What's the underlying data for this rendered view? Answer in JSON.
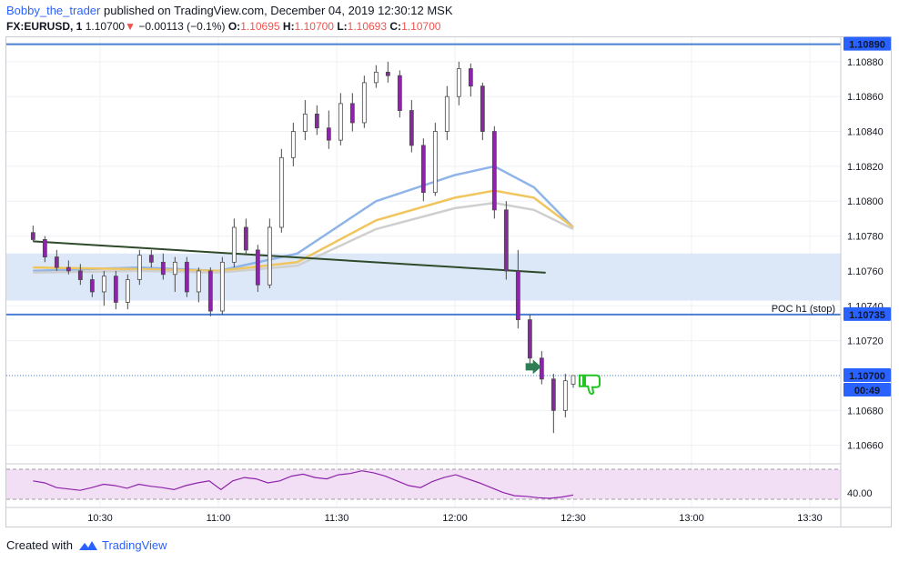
{
  "header": {
    "author": "Bobby_the_trader",
    "published": "published on TradingView.com, December 04, 2019 12:30:12 MSK",
    "symbol": "FX:EURUSD, 1",
    "last": "1.10700",
    "change_arrow": "▼",
    "change": "−0.00113 (−0.1%)",
    "o_label": "O:",
    "o_value": "1.10695",
    "h_label": "H:",
    "h_value": "1.10700",
    "l_label": "L:",
    "l_value": "1.10693",
    "c_label": "C:",
    "c_value": "1.10700"
  },
  "footer": {
    "created_with": "Created with",
    "brand": "TradingView"
  },
  "colors": {
    "accent": "#2962ff",
    "down": "#ef5350",
    "candle_body": "#8e24aa",
    "level_line": "#4a7fd4",
    "zone": "#dce8f8",
    "ema_blue": "#8fb4e8",
    "ema_gold": "#f1c55e",
    "ema_gray": "#cfcfcf",
    "trendline": "#2e4a2a",
    "rsi_line": "#8e24aa",
    "rsi_band": "#f2def5"
  },
  "chart_data": {
    "type": "candlestick",
    "symbol": "FX:EURUSD",
    "interval": "1",
    "y_ticks": [
      "1.10880",
      "1.10860",
      "1.10840",
      "1.10820",
      "1.10800",
      "1.10780",
      "1.10760",
      "1.10740",
      "1.10720",
      "1.10700",
      "1.10680",
      "1.10660"
    ],
    "x_ticks": [
      "10:30",
      "11:00",
      "11:30",
      "12:00",
      "12:30",
      "13:00",
      "13:30"
    ],
    "ylim": [
      1.10652,
      1.10894
    ],
    "time_range_minutes": [
      10.083,
      13.6
    ],
    "levels": [
      {
        "price": 1.1089,
        "label": "1.10890"
      },
      {
        "price": 1.10735,
        "label": "1.10735",
        "annotation": "POC h1 (stop)"
      }
    ],
    "current_price": {
      "price": 1.107,
      "label": "1.10700",
      "countdown": "00:49"
    },
    "zone": {
      "from": 1.10743,
      "to": 1.1077
    },
    "trendline": {
      "from": {
        "time": "10:13",
        "price": 1.10777
      },
      "to": {
        "time": "12:23",
        "price": 1.10759
      }
    },
    "signal_arrow": {
      "time": "12:20",
      "price": 1.10705,
      "direction": "right"
    },
    "thumbs_down": {
      "time": "12:33",
      "price": 1.10697
    },
    "moving_averages": [
      {
        "color": "ema_blue",
        "points": [
          [
            "10:13",
            1.1076
          ],
          [
            "10:40",
            1.10762
          ],
          [
            "11:00",
            1.1076
          ],
          [
            "11:20",
            1.1077
          ],
          [
            "11:40",
            1.108
          ],
          [
            "12:00",
            1.10815
          ],
          [
            "12:10",
            1.1082
          ],
          [
            "12:20",
            1.10808
          ],
          [
            "12:30",
            1.10785
          ]
        ]
      },
      {
        "color": "ema_gold",
        "points": [
          [
            "10:13",
            1.10762
          ],
          [
            "10:40",
            1.10761
          ],
          [
            "11:00",
            1.1076
          ],
          [
            "11:20",
            1.10765
          ],
          [
            "11:40",
            1.10789
          ],
          [
            "12:00",
            1.10802
          ],
          [
            "12:10",
            1.10806
          ],
          [
            "12:20",
            1.10802
          ],
          [
            "12:30",
            1.10785
          ]
        ]
      },
      {
        "color": "ema_gray",
        "points": [
          [
            "10:13",
            1.10759
          ],
          [
            "10:40",
            1.1076
          ],
          [
            "11:00",
            1.10759
          ],
          [
            "11:20",
            1.10763
          ],
          [
            "11:40",
            1.10784
          ],
          [
            "12:00",
            1.10796
          ],
          [
            "12:10",
            1.10799
          ],
          [
            "12:20",
            1.10795
          ],
          [
            "12:30",
            1.10784
          ]
        ]
      }
    ],
    "candles": [
      {
        "t": "10:13",
        "o": 1.10782,
        "h": 1.10786,
        "l": 1.10777,
        "c": 1.10778
      },
      {
        "t": "10:16",
        "o": 1.10778,
        "h": 1.1078,
        "l": 1.10765,
        "c": 1.10768
      },
      {
        "t": "10:19",
        "o": 1.10768,
        "h": 1.10772,
        "l": 1.1076,
        "c": 1.10762
      },
      {
        "t": "10:22",
        "o": 1.10762,
        "h": 1.10766,
        "l": 1.10758,
        "c": 1.1076
      },
      {
        "t": "10:25",
        "o": 1.1076,
        "h": 1.10764,
        "l": 1.10752,
        "c": 1.10755
      },
      {
        "t": "10:28",
        "o": 1.10755,
        "h": 1.10758,
        "l": 1.10745,
        "c": 1.10748
      },
      {
        "t": "10:31",
        "o": 1.10748,
        "h": 1.1076,
        "l": 1.1074,
        "c": 1.10757
      },
      {
        "t": "10:34",
        "o": 1.10757,
        "h": 1.1076,
        "l": 1.10738,
        "c": 1.10742
      },
      {
        "t": "10:37",
        "o": 1.10742,
        "h": 1.10758,
        "l": 1.10738,
        "c": 1.10755
      },
      {
        "t": "10:40",
        "o": 1.10755,
        "h": 1.10772,
        "l": 1.10752,
        "c": 1.10769
      },
      {
        "t": "10:43",
        "o": 1.10769,
        "h": 1.10772,
        "l": 1.10762,
        "c": 1.10765
      },
      {
        "t": "10:46",
        "o": 1.10765,
        "h": 1.1077,
        "l": 1.10755,
        "c": 1.10758
      },
      {
        "t": "10:49",
        "o": 1.10758,
        "h": 1.10768,
        "l": 1.10748,
        "c": 1.10765
      },
      {
        "t": "10:52",
        "o": 1.10765,
        "h": 1.10768,
        "l": 1.10745,
        "c": 1.10748
      },
      {
        "t": "10:55",
        "o": 1.10748,
        "h": 1.10762,
        "l": 1.10742,
        "c": 1.1076
      },
      {
        "t": "10:58",
        "o": 1.1076,
        "h": 1.10762,
        "l": 1.10734,
        "c": 1.10737
      },
      {
        "t": "11:01",
        "o": 1.10737,
        "h": 1.10768,
        "l": 1.10735,
        "c": 1.10765
      },
      {
        "t": "11:04",
        "o": 1.10765,
        "h": 1.1079,
        "l": 1.10762,
        "c": 1.10785
      },
      {
        "t": "11:07",
        "o": 1.10785,
        "h": 1.1079,
        "l": 1.1077,
        "c": 1.10772
      },
      {
        "t": "11:10",
        "o": 1.10772,
        "h": 1.10775,
        "l": 1.10748,
        "c": 1.10752
      },
      {
        "t": "11:13",
        "o": 1.10752,
        "h": 1.1079,
        "l": 1.1075,
        "c": 1.10785
      },
      {
        "t": "11:16",
        "o": 1.10785,
        "h": 1.1083,
        "l": 1.10782,
        "c": 1.10825
      },
      {
        "t": "11:19",
        "o": 1.10825,
        "h": 1.10845,
        "l": 1.1082,
        "c": 1.1084
      },
      {
        "t": "11:22",
        "o": 1.1084,
        "h": 1.10858,
        "l": 1.10835,
        "c": 1.1085
      },
      {
        "t": "11:25",
        "o": 1.1085,
        "h": 1.10855,
        "l": 1.10838,
        "c": 1.10842
      },
      {
        "t": "11:28",
        "o": 1.10842,
        "h": 1.10852,
        "l": 1.1083,
        "c": 1.10835
      },
      {
        "t": "11:31",
        "o": 1.10835,
        "h": 1.10862,
        "l": 1.10832,
        "c": 1.10856
      },
      {
        "t": "11:34",
        "o": 1.10856,
        "h": 1.10862,
        "l": 1.1084,
        "c": 1.10845
      },
      {
        "t": "11:37",
        "o": 1.10845,
        "h": 1.10872,
        "l": 1.10842,
        "c": 1.10868
      },
      {
        "t": "11:40",
        "o": 1.10868,
        "h": 1.10878,
        "l": 1.10865,
        "c": 1.10874
      },
      {
        "t": "11:43",
        "o": 1.10874,
        "h": 1.1088,
        "l": 1.10868,
        "c": 1.10872
      },
      {
        "t": "11:46",
        "o": 1.10872,
        "h": 1.10875,
        "l": 1.10848,
        "c": 1.10852
      },
      {
        "t": "11:49",
        "o": 1.10852,
        "h": 1.10858,
        "l": 1.10828,
        "c": 1.10832
      },
      {
        "t": "11:52",
        "o": 1.10832,
        "h": 1.10836,
        "l": 1.108,
        "c": 1.10805
      },
      {
        "t": "11:55",
        "o": 1.10805,
        "h": 1.10845,
        "l": 1.10803,
        "c": 1.1084
      },
      {
        "t": "11:58",
        "o": 1.1084,
        "h": 1.10866,
        "l": 1.10835,
        "c": 1.1086
      },
      {
        "t": "12:01",
        "o": 1.1086,
        "h": 1.1088,
        "l": 1.10855,
        "c": 1.10876
      },
      {
        "t": "12:04",
        "o": 1.10876,
        "h": 1.10879,
        "l": 1.1086,
        "c": 1.10866
      },
      {
        "t": "12:07",
        "o": 1.10866,
        "h": 1.10868,
        "l": 1.10835,
        "c": 1.1084
      },
      {
        "t": "12:10",
        "o": 1.1084,
        "h": 1.10843,
        "l": 1.1079,
        "c": 1.10795
      },
      {
        "t": "12:13",
        "o": 1.10795,
        "h": 1.108,
        "l": 1.10755,
        "c": 1.1076
      },
      {
        "t": "12:16",
        "o": 1.1076,
        "h": 1.10772,
        "l": 1.10727,
        "c": 1.10732
      },
      {
        "t": "12:19",
        "o": 1.10732,
        "h": 1.10735,
        "l": 1.10706,
        "c": 1.1071
      },
      {
        "t": "12:22",
        "o": 1.1071,
        "h": 1.10714,
        "l": 1.10695,
        "c": 1.10698
      },
      {
        "t": "12:25",
        "o": 1.10698,
        "h": 1.10701,
        "l": 1.10667,
        "c": 1.1068
      },
      {
        "t": "12:28",
        "o": 1.1068,
        "h": 1.10701,
        "l": 1.10676,
        "c": 1.10697
      },
      {
        "t": "12:30",
        "o": 1.10695,
        "h": 1.107,
        "l": 1.10693,
        "c": 1.107
      }
    ],
    "rsi": {
      "level_label": "40.00",
      "values": [
        55,
        52,
        45,
        43,
        41,
        45,
        50,
        48,
        44,
        50,
        47,
        45,
        42,
        48,
        52,
        55,
        42,
        55,
        60,
        58,
        52,
        55,
        62,
        65,
        60,
        58,
        64,
        66,
        70,
        67,
        62,
        55,
        48,
        45,
        54,
        60,
        64,
        58,
        52,
        45,
        38,
        33,
        32,
        30,
        29,
        31,
        34
      ]
    }
  }
}
